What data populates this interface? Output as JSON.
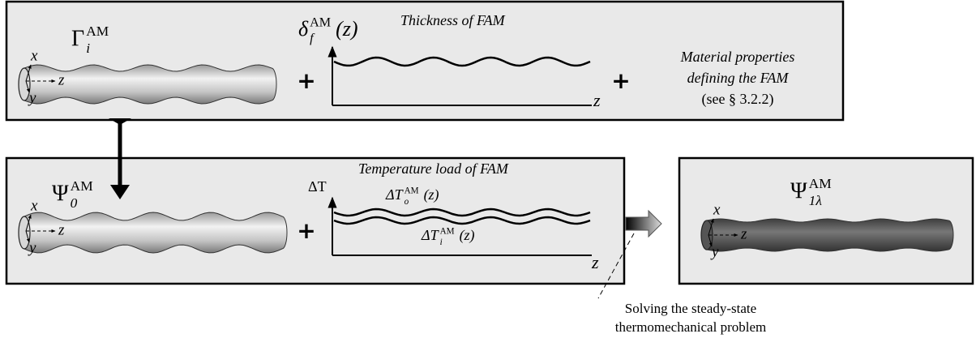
{
  "top_panel": {
    "label": {
      "base": "Γ",
      "sub": "i",
      "sup": "AM"
    },
    "axes": {
      "x": "x",
      "z": "z",
      "y": "y"
    },
    "plus_1": "+",
    "thickness": {
      "title": "Thickness of FAM",
      "y_label": {
        "base": "δ",
        "sub": "f",
        "sup": "AM",
        "arg": "(z)"
      },
      "x_label": "z"
    },
    "plus_2": "+",
    "material": [
      "Material properties",
      "defining the FAM",
      "(see § 3.2.2)"
    ]
  },
  "middle_panel": {
    "label": {
      "base": "Ψ",
      "sub": "0",
      "sup": "AM"
    },
    "axes": {
      "x": "x",
      "z": "z",
      "y": "y"
    },
    "plus": "+",
    "temperature": {
      "title": "Temperature load of FAM",
      "y_label": "ΔT",
      "outer": {
        "base": "ΔT",
        "sub": "o",
        "sup": "AM",
        "arg": "(z)"
      },
      "inner": {
        "base": "ΔT",
        "sub": "i",
        "sup": "AM",
        "arg": "(z)"
      },
      "x_label": "z"
    }
  },
  "result_panel": {
    "label": {
      "base": "Ψ",
      "sub": "1λ",
      "sup": "AM"
    },
    "axes": {
      "x": "x",
      "z": "z",
      "y": "y"
    }
  },
  "caption": [
    "Solving the steady-state",
    "thermomechanical problem"
  ]
}
